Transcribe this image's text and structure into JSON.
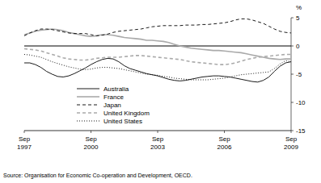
{
  "chart_data": {
    "type": "line",
    "y_label": "%",
    "source": "Source: Organisation for Economic Co-operation and Development, OECD.",
    "categories": [
      "Sep 1997",
      null,
      null,
      null,
      null,
      null,
      null,
      null,
      null,
      null,
      null,
      null,
      "Sep 2000",
      null,
      null,
      null,
      null,
      null,
      null,
      null,
      null,
      null,
      null,
      null,
      "Sep 2003",
      null,
      null,
      null,
      null,
      null,
      null,
      null,
      null,
      null,
      null,
      null,
      "Sep 2006",
      null,
      null,
      null,
      null,
      null,
      null,
      null,
      null,
      null,
      null,
      null,
      "Sep 2009"
    ],
    "ylim": [
      -15,
      5
    ],
    "yticks": [
      5,
      0,
      -5,
      -10,
      -15
    ],
    "legend": "lower left",
    "series": [
      {
        "name": "Australia",
        "color": "#000000",
        "line_style": "solid",
        "values": [
          -3.0,
          -3.0,
          -3.3,
          -3.8,
          -4.5,
          -5.0,
          -5.4,
          -5.5,
          -5.3,
          -4.9,
          -4.4,
          -3.9,
          -3.3,
          -2.8,
          -2.4,
          -2.2,
          -2.3,
          -2.8,
          -3.5,
          -4.0,
          -4.3,
          -4.6,
          -4.9,
          -5.1,
          -5.3,
          -5.6,
          -5.9,
          -6.1,
          -6.2,
          -6.1,
          -5.9,
          -5.7,
          -5.5,
          -5.4,
          -5.3,
          -5.3,
          -5.4,
          -5.5,
          -5.7,
          -5.9,
          -6.1,
          -6.3,
          -6.4,
          -6.1,
          -5.5,
          -4.5,
          -3.6,
          -3.0,
          -2.8
        ]
      },
      {
        "name": "France",
        "color": "#aaaaaa",
        "line_style": "solid",
        "values": [
          2.0,
          2.3,
          2.6,
          2.8,
          2.9,
          3.0,
          2.9,
          2.7,
          2.4,
          2.2,
          2.0,
          1.8,
          1.7,
          1.8,
          2.0,
          2.0,
          1.9,
          1.7,
          1.5,
          1.4,
          1.3,
          1.2,
          1.0,
          1.0,
          0.9,
          0.8,
          0.6,
          0.3,
          0.0,
          -0.2,
          -0.4,
          -0.5,
          -0.6,
          -0.7,
          -0.8,
          -0.8,
          -0.9,
          -1.0,
          -1.1,
          -1.2,
          -1.4,
          -1.6,
          -1.8,
          -2.0,
          -2.2,
          -2.3,
          -2.4,
          -2.3,
          -2.3
        ]
      },
      {
        "name": "Japan",
        "color": "#000000",
        "line_style": "dashed",
        "values": [
          1.8,
          2.3,
          2.7,
          3.0,
          3.0,
          2.9,
          2.7,
          2.5,
          2.3,
          2.2,
          2.2,
          2.2,
          2.0,
          1.8,
          1.9,
          2.1,
          2.4,
          2.6,
          2.7,
          2.8,
          2.9,
          3.0,
          3.2,
          3.4,
          3.5,
          3.6,
          3.6,
          3.6,
          3.6,
          3.7,
          3.7,
          3.7,
          3.8,
          3.8,
          3.9,
          4.0,
          4.1,
          4.3,
          4.6,
          4.8,
          4.8,
          4.6,
          4.3,
          4.0,
          3.5,
          3.0,
          2.6,
          2.4,
          2.3
        ]
      },
      {
        "name": "United Kingdom",
        "color": "#aaaaaa",
        "line_style": "dashed",
        "values": [
          -0.5,
          -0.6,
          -0.7,
          -0.9,
          -1.2,
          -1.5,
          -1.8,
          -2.1,
          -2.3,
          -2.4,
          -2.5,
          -2.5,
          -2.4,
          -2.2,
          -2.1,
          -2.0,
          -2.0,
          -2.0,
          -1.9,
          -1.8,
          -1.7,
          -1.7,
          -1.8,
          -1.9,
          -2.0,
          -2.1,
          -2.2,
          -2.3,
          -2.4,
          -2.6,
          -2.8,
          -2.9,
          -3.0,
          -3.1,
          -3.2,
          -3.3,
          -3.3,
          -3.2,
          -3.0,
          -2.7,
          -2.4,
          -2.2,
          -2.0,
          -1.9,
          -1.8,
          -1.7,
          -1.6,
          -1.5,
          -1.5
        ]
      },
      {
        "name": "United States",
        "color": "#000000",
        "line_style": "dotted",
        "values": [
          -1.5,
          -1.6,
          -1.8,
          -2.0,
          -2.4,
          -2.8,
          -3.1,
          -3.4,
          -3.7,
          -3.9,
          -4.1,
          -4.2,
          -4.1,
          -3.9,
          -3.8,
          -3.8,
          -3.9,
          -4.0,
          -4.2,
          -4.4,
          -4.6,
          -4.8,
          -5.0,
          -5.1,
          -5.2,
          -5.4,
          -5.5,
          -5.7,
          -5.8,
          -5.9,
          -6.0,
          -6.0,
          -6.0,
          -6.0,
          -5.9,
          -5.8,
          -5.7,
          -5.5,
          -5.3,
          -5.1,
          -5.0,
          -4.9,
          -4.8,
          -4.7,
          -4.6,
          -4.0,
          -3.2,
          -2.6,
          -2.8
        ]
      }
    ]
  }
}
